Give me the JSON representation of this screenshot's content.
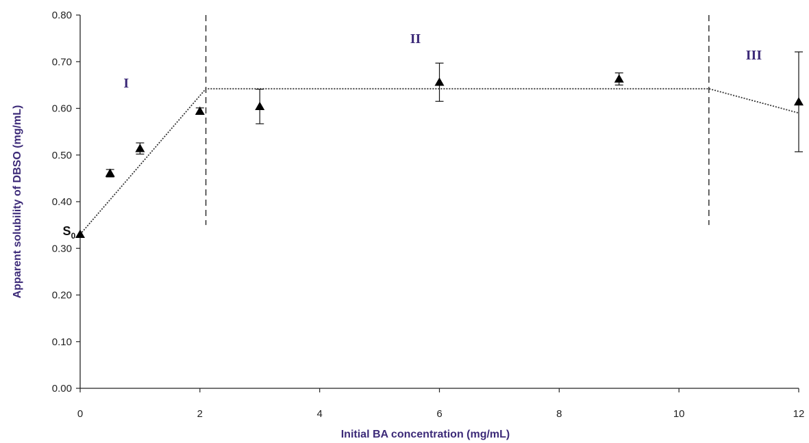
{
  "chart_data": {
    "type": "scatter",
    "xlabel": "Initial BA concentration  (mg/mL)",
    "ylabel": "Apparent solubility of DBSO (mg/mL)",
    "xlim": [
      0,
      12
    ],
    "ylim": [
      0,
      0.8
    ],
    "x_ticks": [
      "0",
      "2",
      "4",
      "6",
      "8",
      "10",
      "12"
    ],
    "y_ticks": [
      "0.00",
      "0.10",
      "0.20",
      "0.30",
      "0.40",
      "0.50",
      "0.60",
      "0.70",
      "0.80"
    ],
    "grid": false,
    "points": [
      {
        "x": 0,
        "y": 0.33,
        "err": 0
      },
      {
        "x": 0.5,
        "y": 0.461,
        "err": 0.008
      },
      {
        "x": 1,
        "y": 0.514,
        "err": 0.012
      },
      {
        "x": 2,
        "y": 0.594,
        "err": 0.007
      },
      {
        "x": 3,
        "y": 0.604,
        "err": 0.037
      },
      {
        "x": 6,
        "y": 0.656,
        "err": 0.041
      },
      {
        "x": 9,
        "y": 0.663,
        "err": 0.013
      },
      {
        "x": 12,
        "y": 0.614,
        "err": 0.107
      }
    ],
    "fit_line": [
      {
        "x": 0,
        "y": 0.33
      },
      {
        "x": 2.1,
        "y": 0.642
      },
      {
        "x": 10.5,
        "y": 0.642
      },
      {
        "x": 12,
        "y": 0.59
      }
    ],
    "region_boundaries": [
      {
        "x": 2.1,
        "y_from": 0.35,
        "y_to": 0.8
      },
      {
        "x": 10.5,
        "y_from": 0.35,
        "y_to": 0.8
      }
    ],
    "region_labels": [
      {
        "text": "I",
        "x": 0.77,
        "y": 0.645
      },
      {
        "text": "II",
        "x": 5.6,
        "y": 0.74
      },
      {
        "text": "III",
        "x": 11.25,
        "y": 0.705
      }
    ],
    "annotation": {
      "text": "S",
      "subscript": "0",
      "x": -0.1,
      "y": 0.33
    },
    "colors": {
      "axis_title": "#3c2a78",
      "region_label": "#3c2a78",
      "marker": "#000000",
      "axis": "#222222"
    }
  }
}
